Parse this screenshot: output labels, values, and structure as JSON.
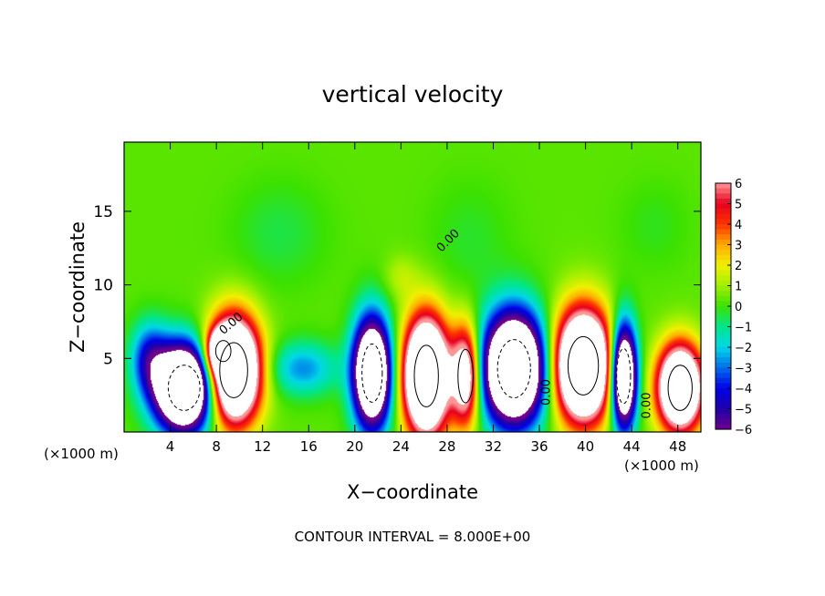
{
  "chart_data": {
    "type": "heatmap",
    "title": "vertical velocity",
    "xlabel": "X−coordinate",
    "ylabel": "Z−coordinate",
    "x_unit_left": "(×1000 m)",
    "x_unit_right": "(×1000 m)",
    "xlim": [
      0,
      50
    ],
    "ylim": [
      0,
      19.7
    ],
    "x_ticks": [
      4,
      8,
      12,
      16,
      20,
      24,
      28,
      32,
      36,
      40,
      44,
      48
    ],
    "y_ticks": [
      5,
      10,
      15
    ],
    "colorbar": {
      "ticks": [
        "6",
        "5",
        "4",
        "3",
        "2",
        "1",
        "0",
        "−1",
        "−2",
        "−3",
        "−4",
        "−5",
        "−6"
      ],
      "range": [
        -6,
        6
      ]
    },
    "contour_label": "0.00",
    "footer": "CONTOUR INTERVAL = 8.000E+00",
    "background_value": 0.3,
    "cells": [
      {
        "x": 5.2,
        "z": 3.0,
        "rx": 2.5,
        "rz": 2.8,
        "w": -16
      },
      {
        "x": 9.5,
        "z": 4.2,
        "rx": 2.2,
        "rz": 3.4,
        "w": 16
      },
      {
        "x": 8.6,
        "z": 5.5,
        "rx": 1.2,
        "rz": 1.3,
        "w": 10
      },
      {
        "x": 2.2,
        "z": 5.0,
        "rx": 1.6,
        "rz": 2.4,
        "w": -4
      },
      {
        "x": 15.5,
        "z": 4.3,
        "rx": 3.0,
        "rz": 1.8,
        "w": -3
      },
      {
        "x": 21.5,
        "z": 4.0,
        "rx": 1.6,
        "rz": 3.6,
        "w": -14
      },
      {
        "x": 26.2,
        "z": 3.8,
        "rx": 1.9,
        "rz": 3.8,
        "w": 16
      },
      {
        "x": 29.6,
        "z": 3.8,
        "rx": 1.2,
        "rz": 3.3,
        "w": 9
      },
      {
        "x": 33.8,
        "z": 4.3,
        "rx": 2.6,
        "rz": 3.6,
        "w": -16
      },
      {
        "x": 39.8,
        "z": 4.5,
        "rx": 2.4,
        "rz": 3.6,
        "w": 16
      },
      {
        "x": 43.3,
        "z": 3.8,
        "rx": 1.1,
        "rz": 3.4,
        "w": -14
      },
      {
        "x": 48.2,
        "z": 3.0,
        "rx": 1.9,
        "rz": 2.8,
        "w": 14
      },
      {
        "x": 13.5,
        "z": 13.5,
        "rx": 4.0,
        "rz": 3.5,
        "w": -0.8
      },
      {
        "x": 30.0,
        "z": 13.0,
        "rx": 3.5,
        "rz": 4.0,
        "w": -0.6
      },
      {
        "x": 46.0,
        "z": 14.0,
        "rx": 3.0,
        "rz": 3.0,
        "w": -0.5
      },
      {
        "x": 24.0,
        "z": 10.5,
        "rx": 1.5,
        "rz": 1.5,
        "w": 1.0
      }
    ]
  }
}
